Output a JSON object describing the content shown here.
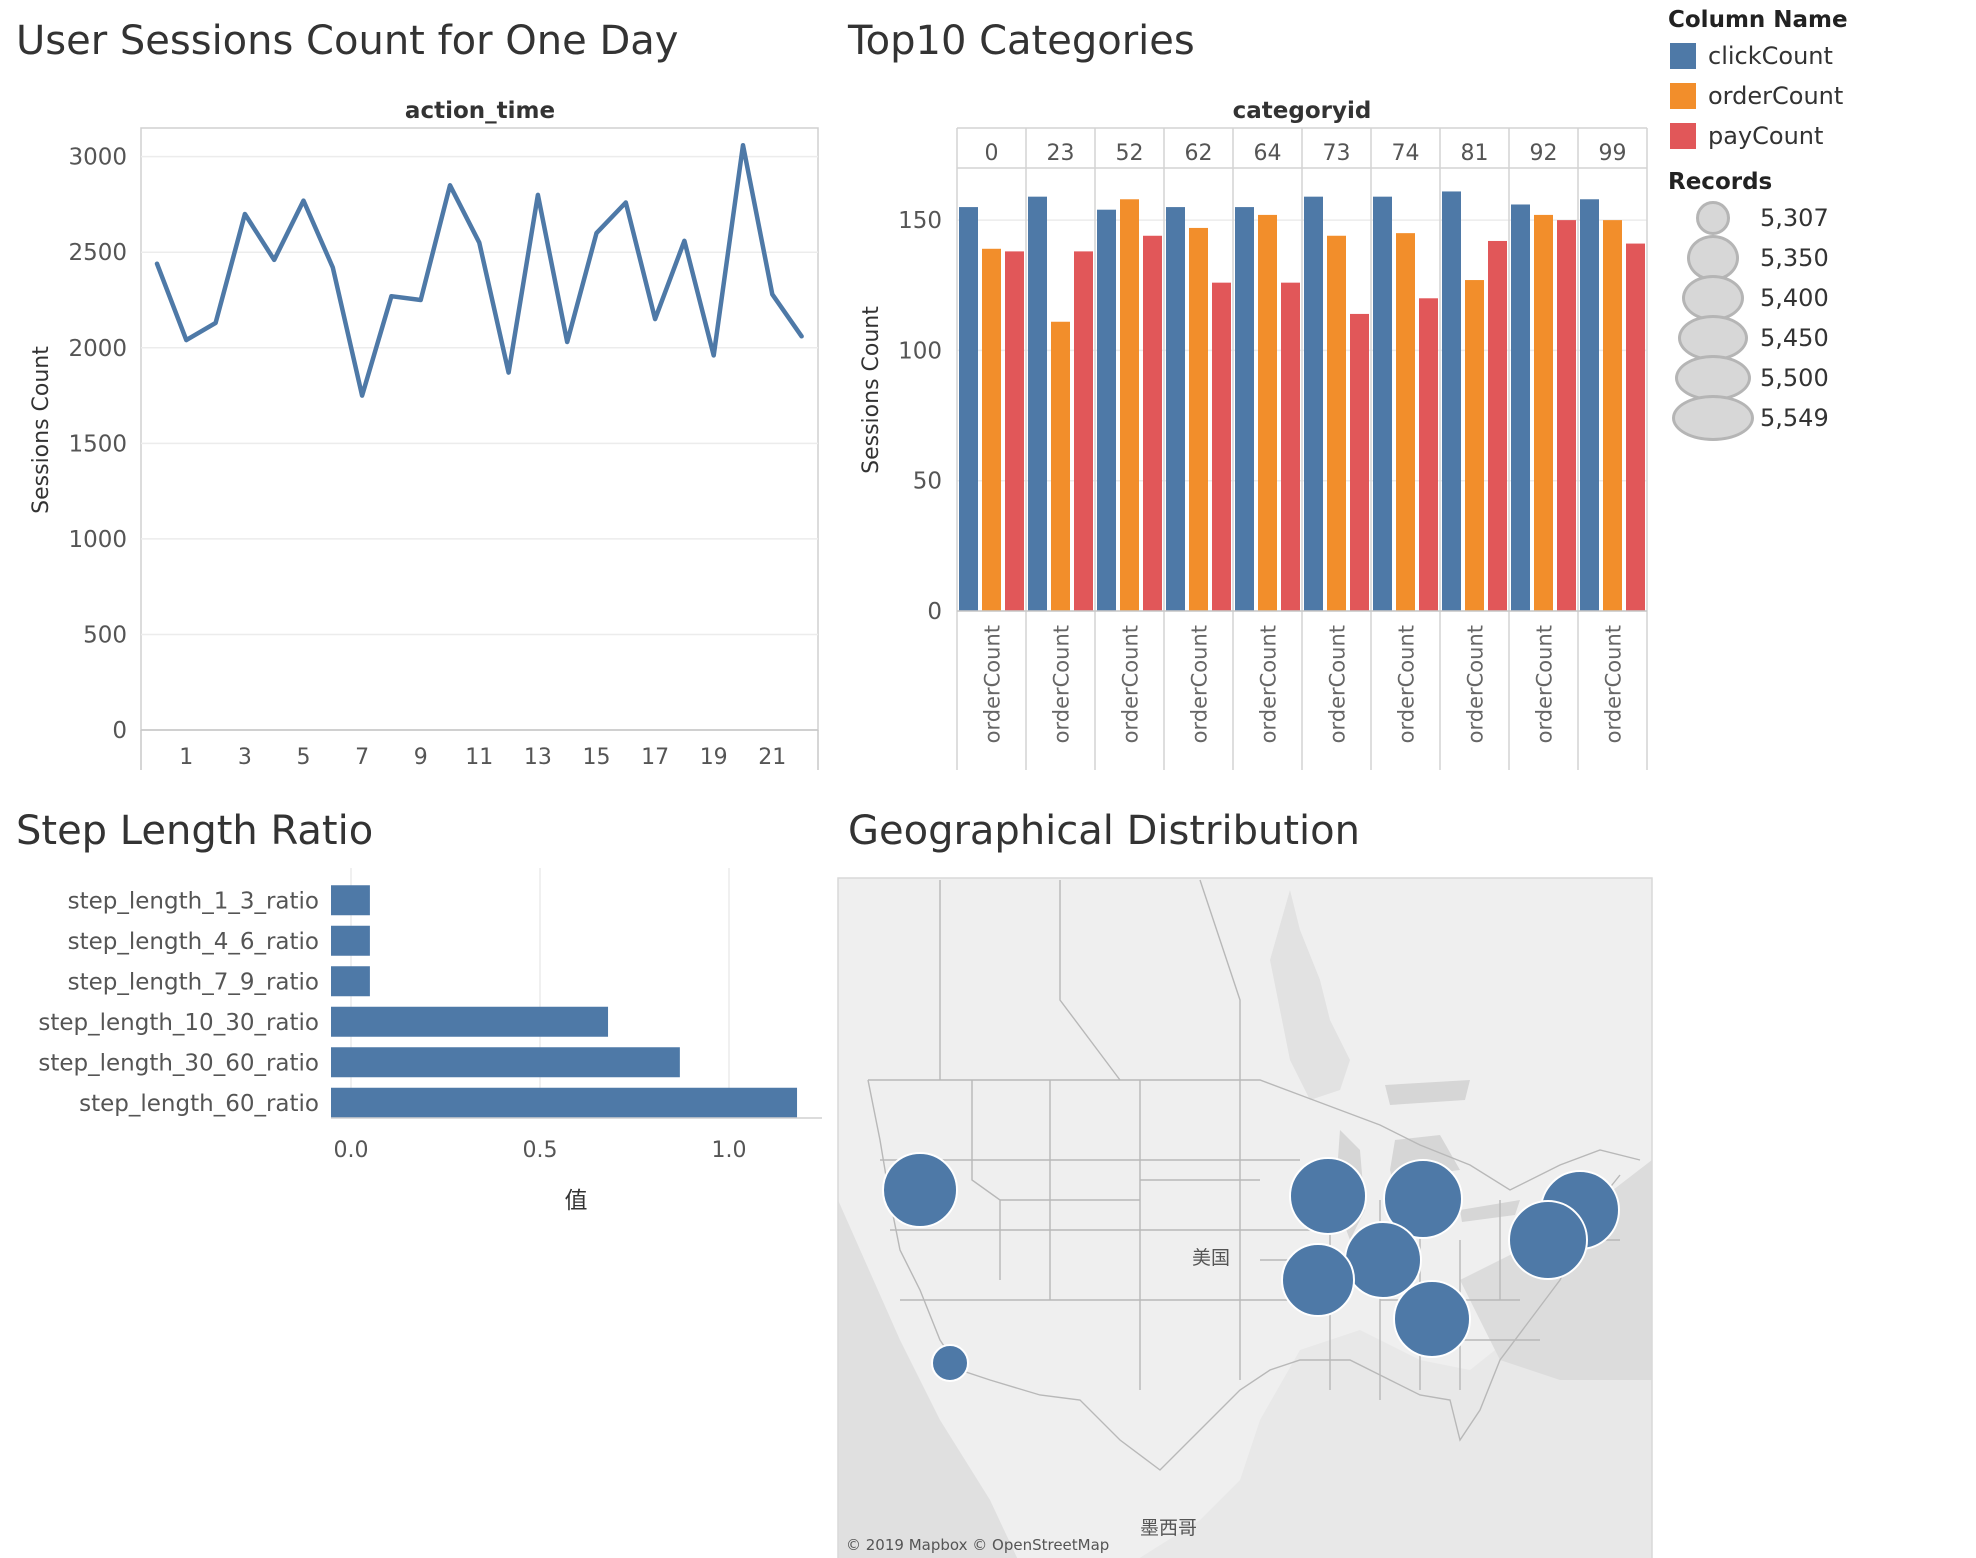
{
  "dashboard": {
    "line_title": "User Sessions Count for One Day",
    "bar_title": "Top10 Categories",
    "step_title": "Step Length Ratio",
    "geo_title": "Geographical Distribution"
  },
  "legend": {
    "color_header": "Column Name",
    "color_items": [
      {
        "label": "clickCount",
        "color": "#4e79a7"
      },
      {
        "label": "orderCount",
        "color": "#f28e2b"
      },
      {
        "label": "payCount",
        "color": "#e15759"
      }
    ],
    "size_header": "Records",
    "size_items": [
      "5,307",
      "5,350",
      "5,400",
      "5,450",
      "5,500",
      "5,549"
    ]
  },
  "map": {
    "country_label": "美国",
    "mexico_label": "墨西哥",
    "credit": "© 2019 Mapbox © OpenStreetMap"
  },
  "chart_data": [
    {
      "type": "line",
      "title": "User Sessions Count for One Day",
      "xlabel": "action_time",
      "ylabel": "Sessions Count",
      "x": [
        0,
        1,
        2,
        3,
        4,
        5,
        6,
        7,
        8,
        9,
        10,
        11,
        12,
        13,
        14,
        15,
        16,
        17,
        18,
        19,
        20,
        21,
        22
      ],
      "x_tick_labels": [
        "1",
        "3",
        "5",
        "7",
        "9",
        "11",
        "13",
        "15",
        "17",
        "19",
        "21"
      ],
      "x_ticks": [
        1,
        3,
        5,
        7,
        9,
        11,
        13,
        15,
        17,
        19,
        21
      ],
      "y": [
        2440,
        2040,
        2130,
        2700,
        2460,
        2770,
        2420,
        1750,
        2270,
        2250,
        2850,
        2550,
        1870,
        2800,
        2030,
        2600,
        2760,
        2150,
        2560,
        1960,
        3060,
        2280,
        2060
      ],
      "y_ticks": [
        0,
        500,
        1000,
        1500,
        2000,
        2500,
        3000
      ],
      "ylim": [
        0,
        3150
      ],
      "color": "#4e79a7",
      "grid": true
    },
    {
      "type": "bar",
      "title": "Top10 Categories",
      "xlabel": "categoryid",
      "ylabel": "Sessions Count",
      "categories": [
        "0",
        "23",
        "52",
        "62",
        "64",
        "73",
        "74",
        "81",
        "92",
        "99"
      ],
      "x_axis_label": "orderCount",
      "series": [
        {
          "name": "clickCount",
          "color": "#4e79a7",
          "values": [
            155,
            159,
            154,
            155,
            155,
            159,
            159,
            161,
            156,
            158
          ]
        },
        {
          "name": "orderCount",
          "color": "#f28e2b",
          "values": [
            139,
            111,
            158,
            147,
            152,
            144,
            145,
            127,
            152,
            150
          ]
        },
        {
          "name": "payCount",
          "color": "#e15759",
          "values": [
            138,
            138,
            144,
            126,
            126,
            114,
            120,
            142,
            150,
            141
          ]
        }
      ],
      "y_ticks": [
        0,
        50,
        100,
        150
      ],
      "ylim": [
        0,
        170
      ],
      "grid": true
    },
    {
      "type": "bar",
      "orientation": "horizontal",
      "title": "Step Length Ratio",
      "xlabel": "值",
      "categories": [
        "step_length_1_3_ratio",
        "step_length_4_6_ratio",
        "step_length_7_9_ratio",
        "step_length_10_30_ratio",
        "step_length_30_60_ratio",
        "step_length_60_ratio"
      ],
      "values": [
        0.05,
        0.05,
        0.05,
        0.68,
        0.87,
        1.18
      ],
      "x_ticks": [
        "0.0",
        "0.5",
        "1.0"
      ],
      "x_tick_values": [
        0,
        0.5,
        1.0
      ],
      "xlim": [
        -0.05,
        1.23
      ],
      "color": "#4e79a7"
    }
  ]
}
